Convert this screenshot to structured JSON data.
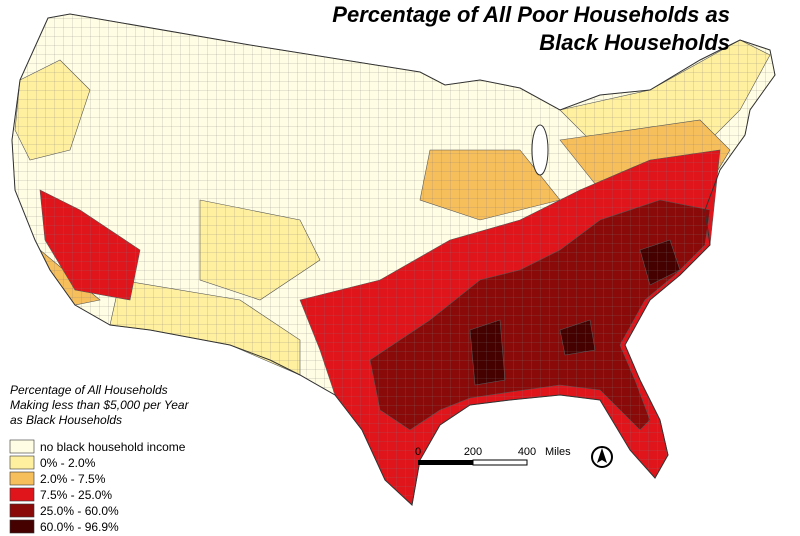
{
  "header": {
    "title_lines": [
      "Percentage of All Poor Households as",
      "Black Households"
    ]
  },
  "legend": {
    "title_lines": [
      "Percentage of All Households",
      "Making less than $5,000 per Year",
      "as Black Households"
    ],
    "items": [
      {
        "label": "no black household income",
        "color": "#fffde3"
      },
      {
        "label": "0% - 2.0%",
        "color": "#fff0a0"
      },
      {
        "label": "2.0% - 7.5%",
        "color": "#f7bf5c"
      },
      {
        "label": "7.5% - 25.0%",
        "color": "#e0151b"
      },
      {
        "label": "25.0% - 60.0%",
        "color": "#8a0a0a"
      },
      {
        "label": "60.0% - 96.9%",
        "color": "#450000"
      }
    ]
  },
  "scale": {
    "labels": [
      "0",
      "200",
      "400",
      "Miles"
    ]
  }
}
